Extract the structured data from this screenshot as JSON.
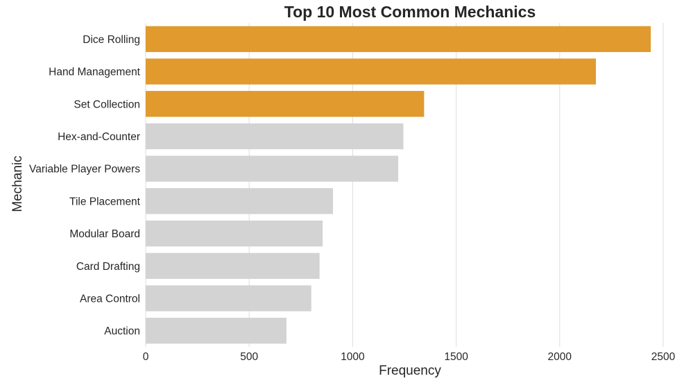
{
  "chart_data": {
    "type": "bar",
    "orientation": "horizontal",
    "title": "Top 10 Most Common Mechanics",
    "xlabel": "Frequency",
    "ylabel": "Mechanic",
    "xlim": [
      0,
      2550
    ],
    "xticks": [
      0,
      500,
      1000,
      1500,
      2000,
      2500
    ],
    "grid": "vertical",
    "categories": [
      "Dice Rolling",
      "Hand Management",
      "Set Collection",
      "Hex-and-Counter",
      "Variable Player Powers",
      "Tile Placement",
      "Modular Board",
      "Card Drafting",
      "Area Control",
      "Auction"
    ],
    "values": [
      2440,
      2175,
      1345,
      1245,
      1220,
      905,
      855,
      840,
      800,
      680
    ],
    "highlight_count": 3,
    "colors": {
      "highlight": "#e09a2e",
      "default": "#d3d3d3",
      "grid": "#dddddd",
      "text": "#262626"
    }
  }
}
